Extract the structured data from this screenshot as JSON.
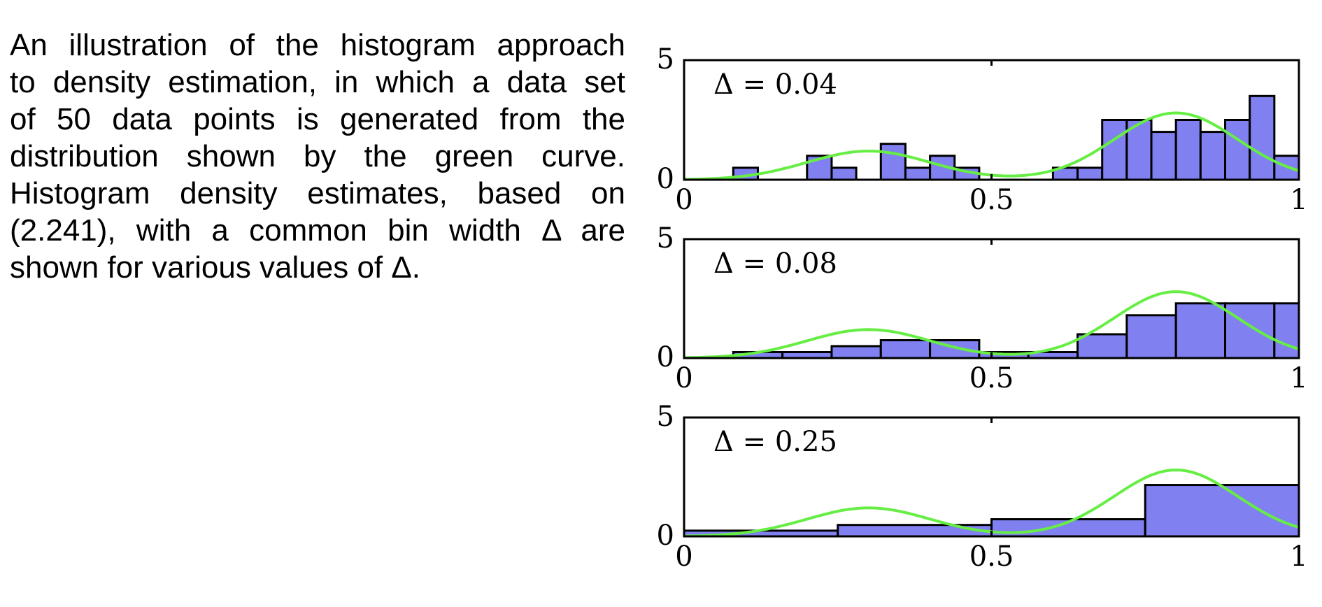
{
  "caption": {
    "lines": [
      "An illustration of the histogram approach",
      "to density estimation, in which a data set",
      "of 50 data points is generated from the",
      "distribution shown by the green curve.",
      "Histogram density estimates, based on",
      "(2.241), with a common bin width Δ are",
      "shown for various values of Δ."
    ]
  },
  "colors": {
    "bar_fill": "#8080f0",
    "bar_stroke": "#000000",
    "curve": "#66ee44"
  },
  "chart_data": [
    {
      "type": "bar",
      "label": "Δ = 0.04",
      "bin_width": 0.04,
      "x_range": [
        0,
        1
      ],
      "ylim": [
        0,
        5
      ],
      "x_ticks": [
        "0",
        "0.5",
        "1"
      ],
      "y_ticks": [
        "0",
        "5"
      ],
      "bins": [
        {
          "x0": 0.08,
          "h": 0.5
        },
        {
          "x0": 0.12,
          "h": 0
        },
        {
          "x0": 0.2,
          "h": 1.0
        },
        {
          "x0": 0.24,
          "h": 0.5
        },
        {
          "x0": 0.32,
          "h": 1.5
        },
        {
          "x0": 0.36,
          "h": 0.5
        },
        {
          "x0": 0.4,
          "h": 1.0
        },
        {
          "x0": 0.44,
          "h": 0.5
        },
        {
          "x0": 0.6,
          "h": 0.5
        },
        {
          "x0": 0.64,
          "h": 0.5
        },
        {
          "x0": 0.68,
          "h": 2.5
        },
        {
          "x0": 0.72,
          "h": 2.5
        },
        {
          "x0": 0.76,
          "h": 2.0
        },
        {
          "x0": 0.8,
          "h": 2.5
        },
        {
          "x0": 0.84,
          "h": 2.0
        },
        {
          "x0": 0.88,
          "h": 2.5
        },
        {
          "x0": 0.92,
          "h": 3.5
        },
        {
          "x0": 0.96,
          "h": 1.0
        }
      ]
    },
    {
      "type": "bar",
      "label": "Δ = 0.08",
      "bin_width": 0.08,
      "x_range": [
        0,
        1
      ],
      "ylim": [
        0,
        5
      ],
      "x_ticks": [
        "0",
        "0.5",
        "1"
      ],
      "y_ticks": [
        "0",
        "5"
      ],
      "bins": [
        {
          "x0": 0.08,
          "h": 0.25
        },
        {
          "x0": 0.16,
          "h": 0.25
        },
        {
          "x0": 0.24,
          "h": 0.5
        },
        {
          "x0": 0.32,
          "h": 0.75
        },
        {
          "x0": 0.4,
          "h": 0.75
        },
        {
          "x0": 0.48,
          "h": 0.25
        },
        {
          "x0": 0.56,
          "h": 0.25
        },
        {
          "x0": 0.64,
          "h": 1.0
        },
        {
          "x0": 0.72,
          "h": 1.8
        },
        {
          "x0": 0.8,
          "h": 2.3
        },
        {
          "x0": 0.88,
          "h": 2.3
        },
        {
          "x0": 0.96,
          "h": 2.3
        }
      ]
    },
    {
      "type": "bar",
      "label": "Δ = 0.25",
      "bin_width": 0.25,
      "x_range": [
        0,
        1
      ],
      "ylim": [
        0,
        5
      ],
      "x_ticks": [
        "0",
        "0.5",
        "1"
      ],
      "y_ticks": [
        "0",
        "5"
      ],
      "bins": [
        {
          "x0": 0.0,
          "h": 0.24
        },
        {
          "x0": 0.25,
          "h": 0.48
        },
        {
          "x0": 0.5,
          "h": 0.72
        },
        {
          "x0": 0.75,
          "h": 2.16
        }
      ]
    }
  ],
  "curve": {
    "components": [
      {
        "weight": 0.3,
        "mean": 0.3,
        "sd": 0.1
      },
      {
        "weight": 0.7,
        "mean": 0.8,
        "sd": 0.1
      }
    ]
  }
}
